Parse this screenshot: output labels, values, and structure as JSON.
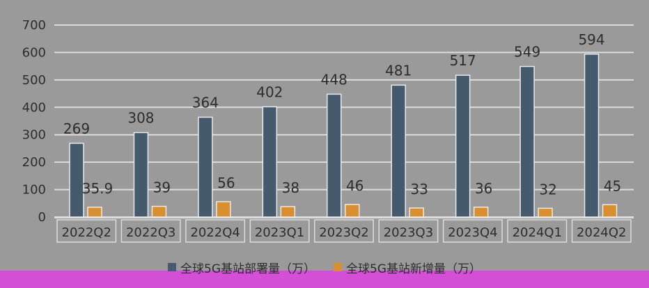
{
  "colors": {
    "background": "#9a9a9a",
    "series1": "#465a6e",
    "series2": "#d98f2f",
    "band": "#d24fd6",
    "grid": "#dcdcdc"
  },
  "chart_data": {
    "type": "bar",
    "categories": [
      "2022Q2",
      "2022Q3",
      "2022Q4",
      "2023Q1",
      "2023Q2",
      "2023Q3",
      "2023Q4",
      "2024Q1",
      "2024Q2"
    ],
    "series": [
      {
        "name": "全球5G基站部署量（万）",
        "values": [
          269,
          308,
          364,
          402,
          448,
          481,
          517,
          549,
          594
        ],
        "labels": [
          "269",
          "308",
          "364",
          "402",
          "448",
          "481",
          "517",
          "549",
          "594"
        ]
      },
      {
        "name": "全球5G基站新增量（万）",
        "values": [
          35.9,
          39,
          56,
          38,
          46,
          33,
          36,
          32,
          45
        ],
        "labels": [
          "35.9",
          "39",
          "56",
          "38",
          "46",
          "33",
          "36",
          "32",
          "45"
        ]
      }
    ],
    "ylim": [
      0,
      700
    ],
    "yticks": [
      "0",
      "100",
      "200",
      "300",
      "400",
      "500",
      "600",
      "700"
    ],
    "grid": true,
    "legend_position": "bottom"
  }
}
